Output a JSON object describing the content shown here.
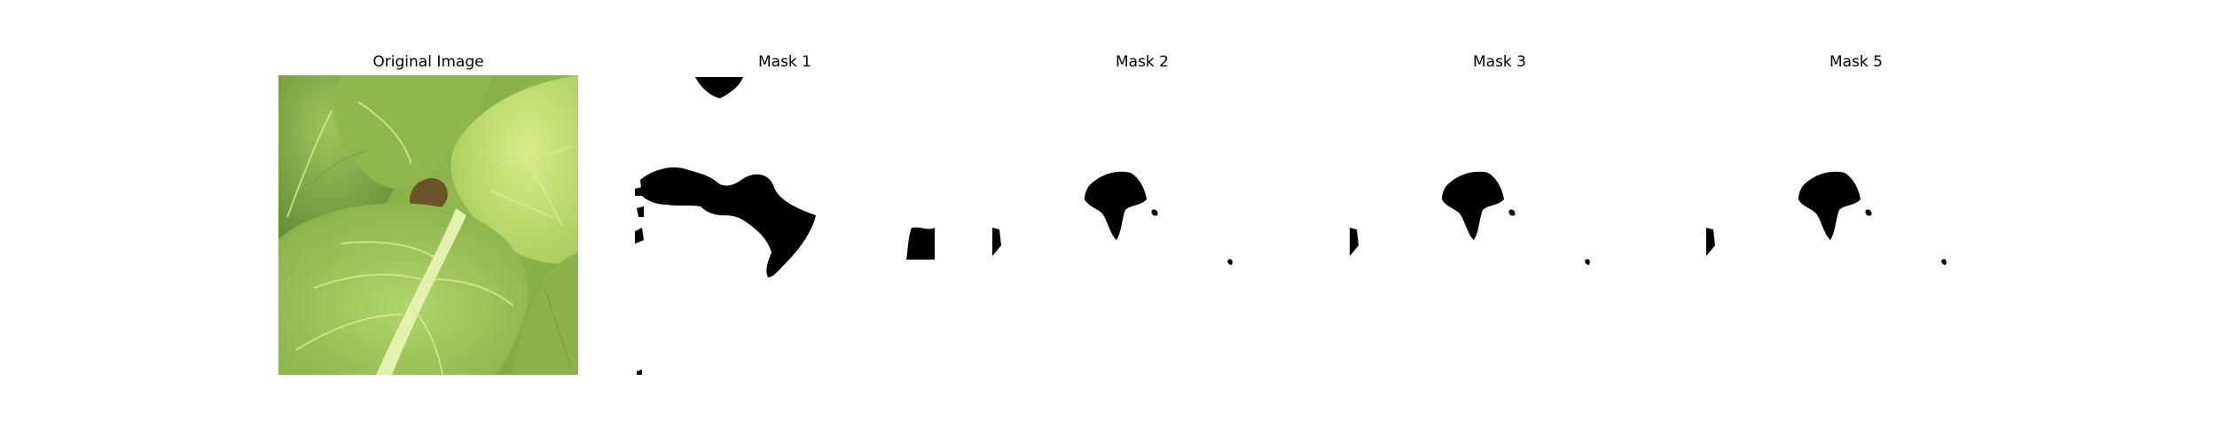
{
  "panels": [
    {
      "title": "Original Image"
    },
    {
      "title": "Mask 1"
    },
    {
      "title": "Mask 2"
    },
    {
      "title": "Mask 3"
    },
    {
      "title": "Mask 5"
    }
  ],
  "colors": {
    "background": "#ffffff",
    "mask": "#000000",
    "leaf_light": "#c3dd6a",
    "leaf_mid": "#9cc456",
    "leaf_dark": "#5f8a35",
    "stem": "#dff0a8",
    "gap": "#7a5a30"
  }
}
